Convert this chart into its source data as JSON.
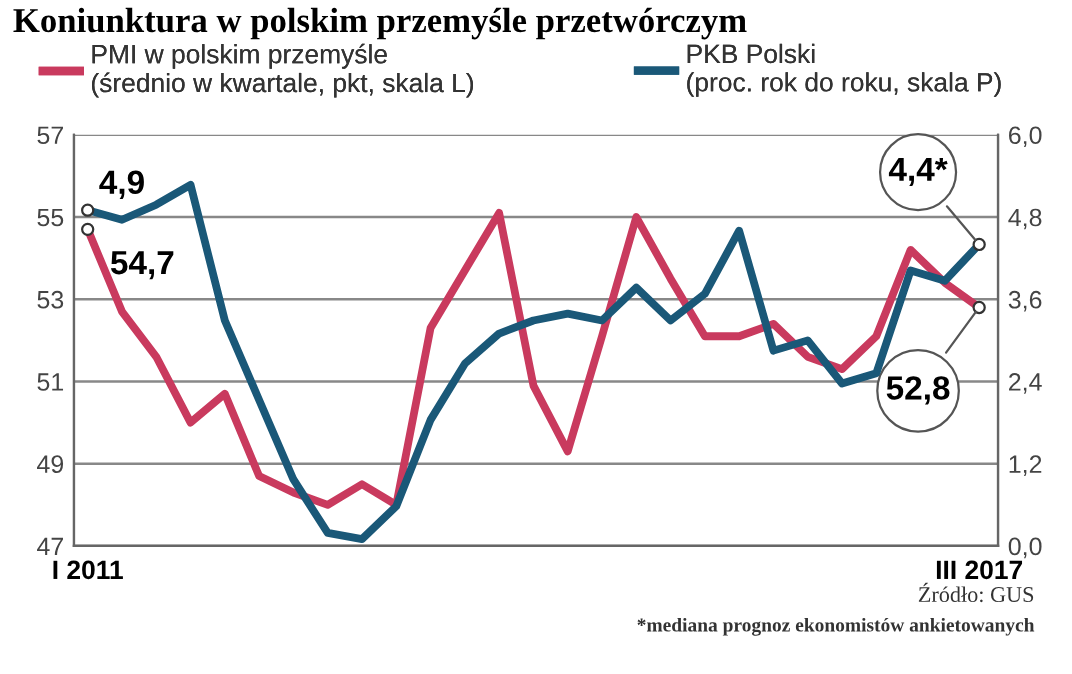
{
  "chart_data": {
    "type": "line",
    "title": "Koniunktura w polskim przemyśle przetwórczym",
    "categories": [
      "I 2011",
      null,
      null,
      null,
      null,
      null,
      null,
      null,
      null,
      null,
      null,
      null,
      null,
      null,
      null,
      null,
      null,
      null,
      null,
      null,
      null,
      null,
      null,
      null,
      null,
      null,
      "III 2017"
    ],
    "series": [
      {
        "name": "PMI w polskim przemyśle\n(średnio w kwartale, pkt, skala L)",
        "color": "#c93a5e",
        "axis": "y",
        "values": [
          54.7,
          52.7,
          51.6,
          50.0,
          50.7,
          48.7,
          48.3,
          48.0,
          48.5,
          48.0,
          52.3,
          53.7,
          55.1,
          50.9,
          49.3,
          52.1,
          55.0,
          53.5,
          52.1,
          52.1,
          52.4,
          51.6,
          51.3,
          52.1,
          54.2,
          53.4,
          52.8
        ],
        "value_labels": [
          "54,7",
          null,
          null,
          null,
          null,
          null,
          null,
          null,
          null,
          null,
          null,
          null,
          null,
          null,
          null,
          null,
          null,
          null,
          null,
          null,
          null,
          null,
          null,
          null,
          null,
          null,
          "52,8"
        ]
      },
      {
        "name": "PKB Polski\n(proc. rok do roku, skala P)",
        "color": "#1a5878",
        "axis": "y2",
        "values": [
          4.9,
          4.76,
          4.98,
          5.27,
          3.29,
          2.13,
          0.97,
          0.19,
          0.1,
          0.58,
          1.84,
          2.66,
          3.1,
          3.29,
          3.39,
          3.29,
          3.77,
          3.29,
          3.68,
          4.6,
          2.85,
          3.0,
          2.37,
          2.52,
          4.02,
          3.87,
          4.4
        ],
        "value_labels": [
          "4,9",
          null,
          null,
          null,
          null,
          null,
          null,
          null,
          null,
          null,
          null,
          null,
          null,
          null,
          null,
          null,
          null,
          null,
          null,
          null,
          null,
          null,
          null,
          null,
          null,
          null,
          "4,4*"
        ]
      }
    ],
    "ylim": [
      47,
      57
    ],
    "yticks": [
      47,
      49,
      51,
      53,
      55,
      57
    ],
    "y2lim": [
      0,
      6
    ],
    "y2ticks": [
      {
        "value": 0,
        "label": "0,0"
      },
      {
        "value": 1.2,
        "label": "1,2"
      },
      {
        "value": 2.4,
        "label": "2,4"
      },
      {
        "value": 3.6,
        "label": "3,6"
      },
      {
        "value": 4.8,
        "label": "4,8"
      },
      {
        "value": 6,
        "label": "6,0"
      }
    ],
    "grid": "y",
    "legend": "top",
    "line_style": "solid",
    "marker": "none",
    "annotations": [
      "Źródło: GUS",
      "*mediana prognoz ekonomistów ankietowanych"
    ]
  }
}
